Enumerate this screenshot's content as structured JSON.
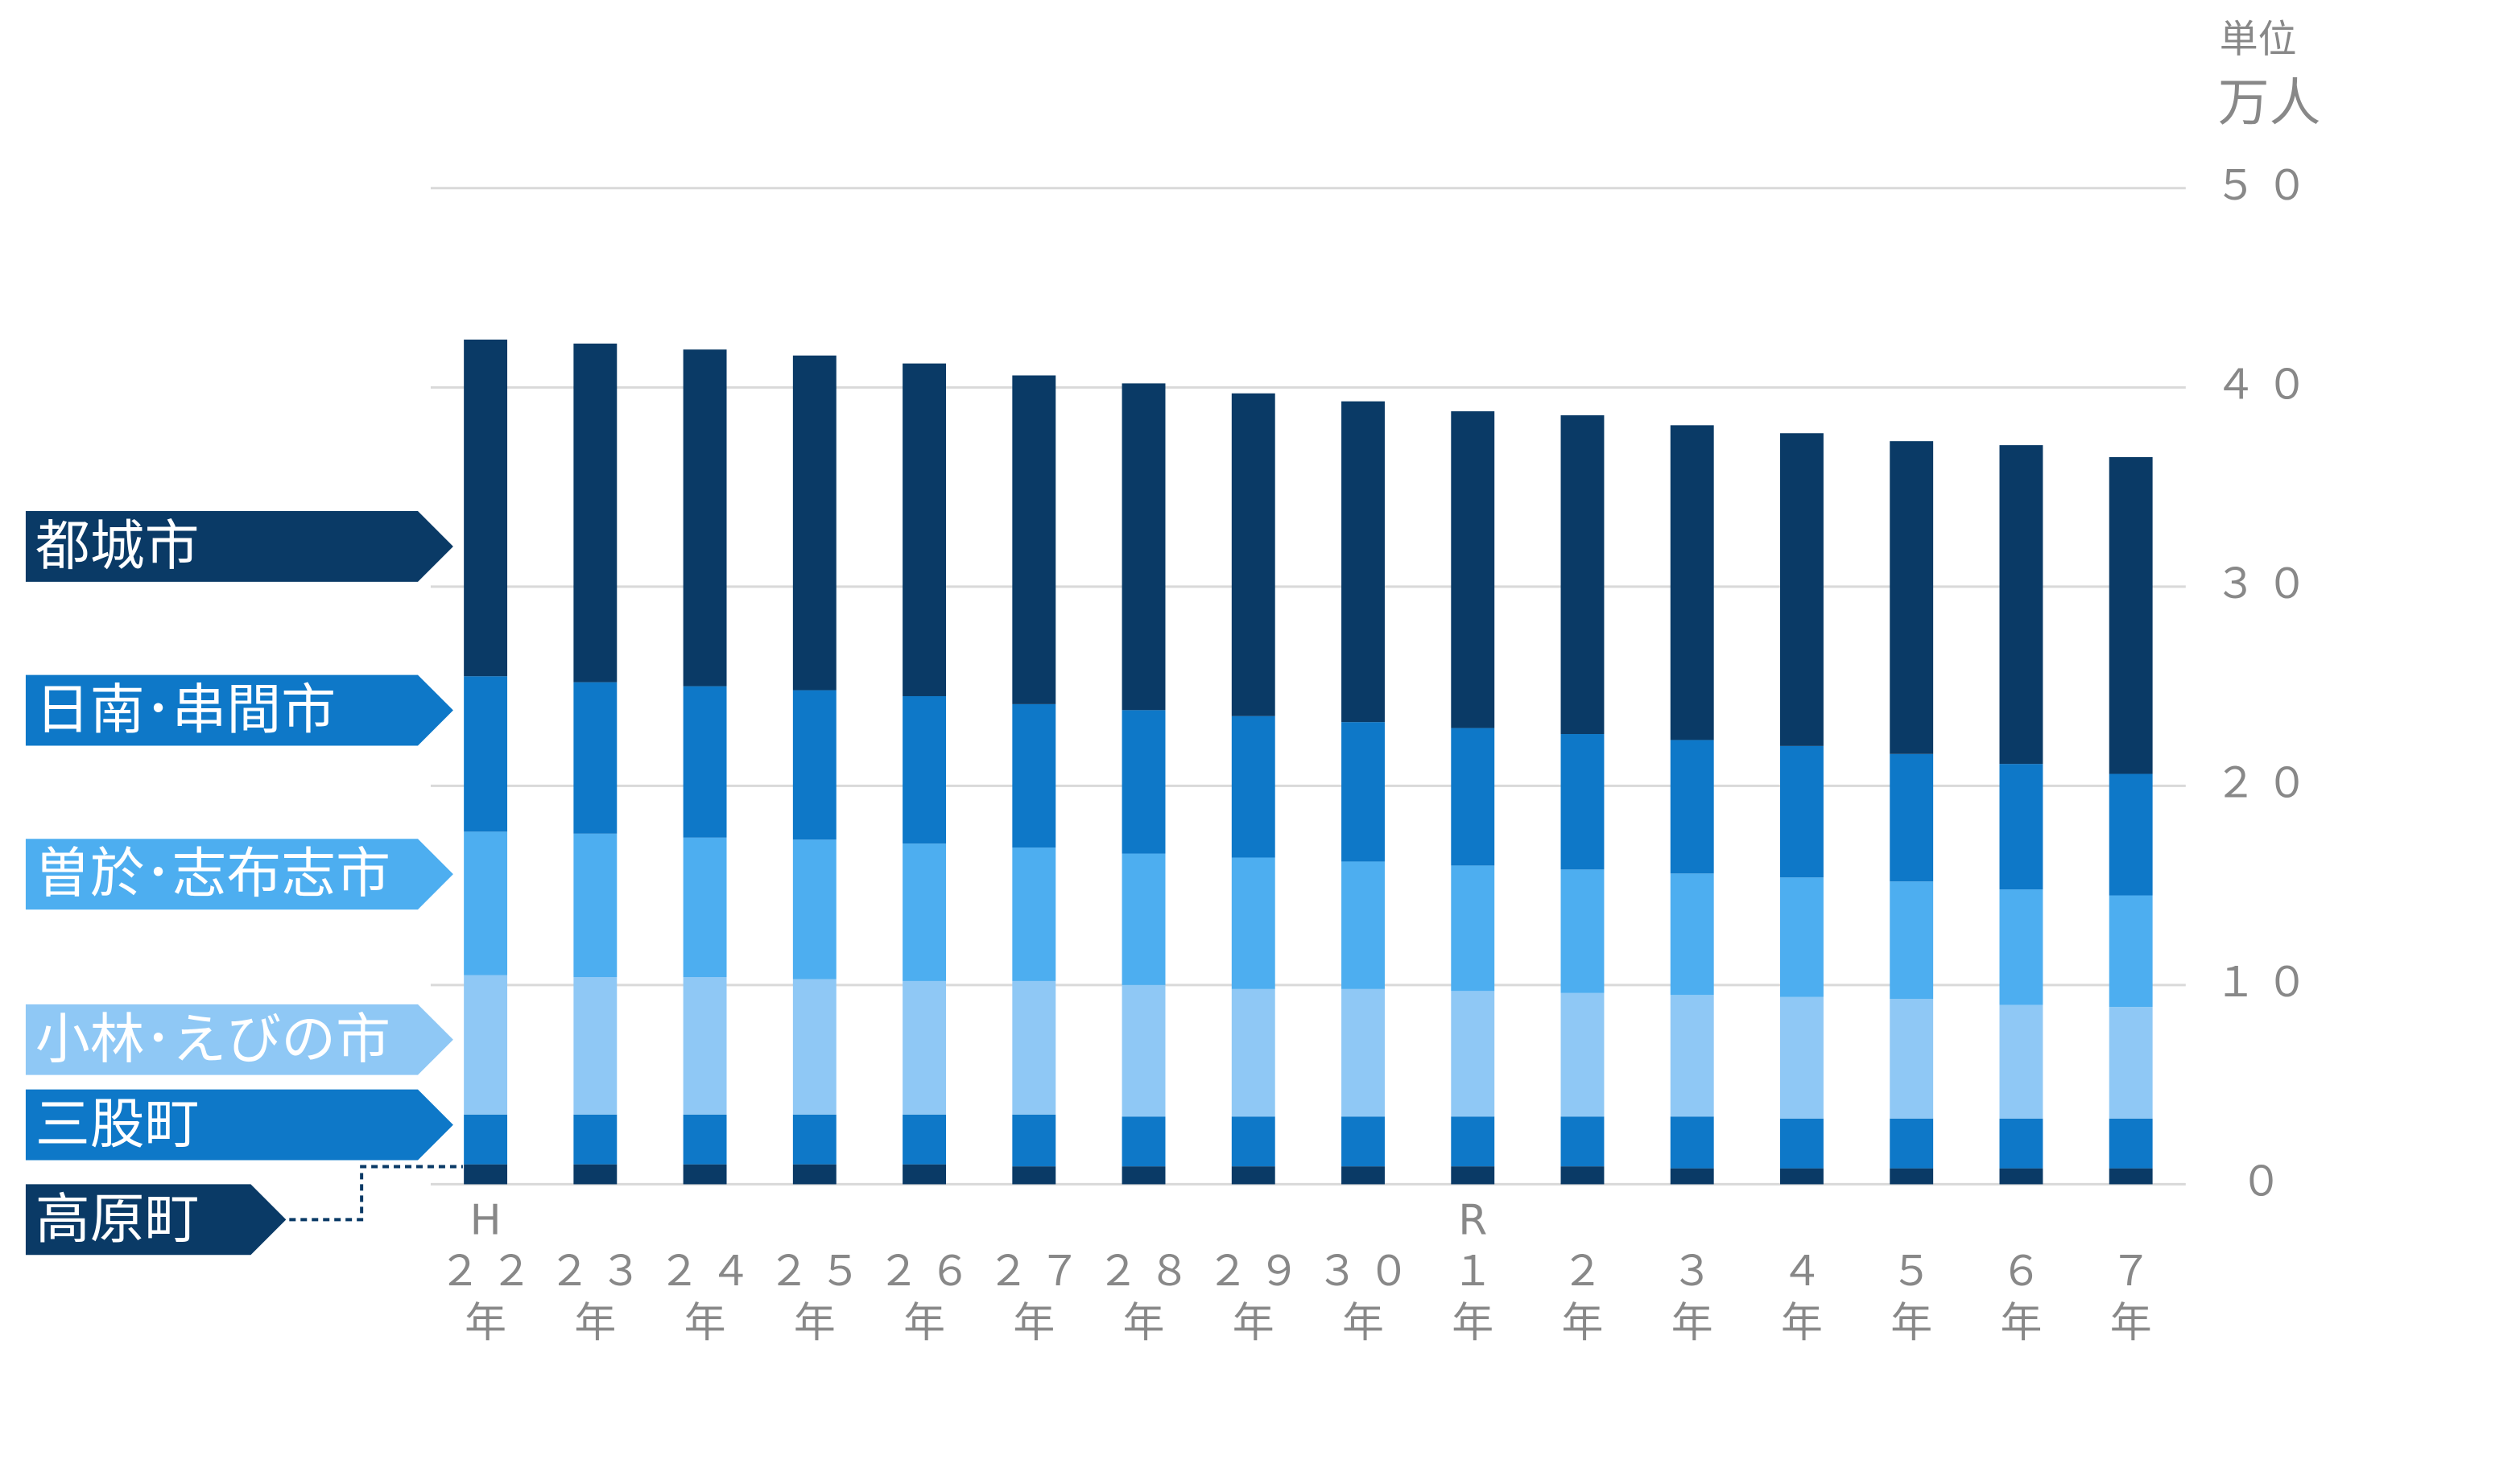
{
  "chart_data": {
    "type": "stacked_bar",
    "unit_caption": "単位",
    "unit": "万人",
    "categories": [
      [
        "H",
        "２２",
        "年"
      ],
      [
        "２３",
        "年"
      ],
      [
        "２４",
        "年"
      ],
      [
        "２５",
        "年"
      ],
      [
        "２６",
        "年"
      ],
      [
        "２７",
        "年"
      ],
      [
        "２８",
        "年"
      ],
      [
        "２９",
        "年"
      ],
      [
        "３０",
        "年"
      ],
      [
        "R",
        "１",
        "年"
      ],
      [
        "２",
        "年"
      ],
      [
        "３",
        "年"
      ],
      [
        "４",
        "年"
      ],
      [
        "５",
        "年"
      ],
      [
        "６",
        "年"
      ],
      [
        "７",
        "年"
      ]
    ],
    "series": [
      {
        "name": "高原町",
        "color": "#0a3a66",
        "values": [
          1.0,
          1.0,
          1.0,
          1.0,
          1.0,
          0.9,
          0.9,
          0.9,
          0.9,
          0.9,
          0.9,
          0.8,
          0.8,
          0.8,
          0.8,
          0.8
        ]
      },
      {
        "name": "三股町",
        "color": "#0e78c8",
        "values": [
          2.5,
          2.5,
          2.5,
          2.5,
          2.5,
          2.6,
          2.5,
          2.5,
          2.5,
          2.5,
          2.5,
          2.6,
          2.5,
          2.5,
          2.5,
          2.5
        ]
      },
      {
        "name": "小林･えびの市",
        "color": "#8fc8f5",
        "values": [
          7.0,
          6.9,
          6.9,
          6.8,
          6.7,
          6.7,
          6.6,
          6.4,
          6.4,
          6.3,
          6.2,
          6.1,
          6.1,
          6.0,
          5.7,
          5.6
        ]
      },
      {
        "name": "曽於･志布志市",
        "color": "#4daef0",
        "values": [
          7.2,
          7.2,
          7.0,
          7.0,
          6.9,
          6.7,
          6.6,
          6.6,
          6.4,
          6.3,
          6.2,
          6.1,
          6.0,
          5.9,
          5.8,
          5.6
        ]
      },
      {
        "name": "日南･串間市",
        "color": "#0e78c8",
        "values": [
          7.8,
          7.6,
          7.6,
          7.5,
          7.4,
          7.2,
          7.2,
          7.1,
          7.0,
          6.9,
          6.8,
          6.7,
          6.6,
          6.4,
          6.3,
          6.1
        ]
      },
      {
        "name": "都城市",
        "color": "#0a3a66",
        "values": [
          16.9,
          17.0,
          16.9,
          16.8,
          16.7,
          16.5,
          16.4,
          16.2,
          16.1,
          15.9,
          16.0,
          15.8,
          15.7,
          15.7,
          16.0,
          15.9
        ]
      }
    ],
    "ylim": [
      0,
      50
    ],
    "yticks": [
      {
        "value": 0,
        "label": "０"
      },
      {
        "value": 10,
        "label": "１０"
      },
      {
        "value": 20,
        "label": "２０"
      },
      {
        "value": 30,
        "label": "３０"
      },
      {
        "value": 40,
        "label": "４０"
      },
      {
        "value": 50,
        "label": "５０"
      }
    ],
    "grid": true
  }
}
